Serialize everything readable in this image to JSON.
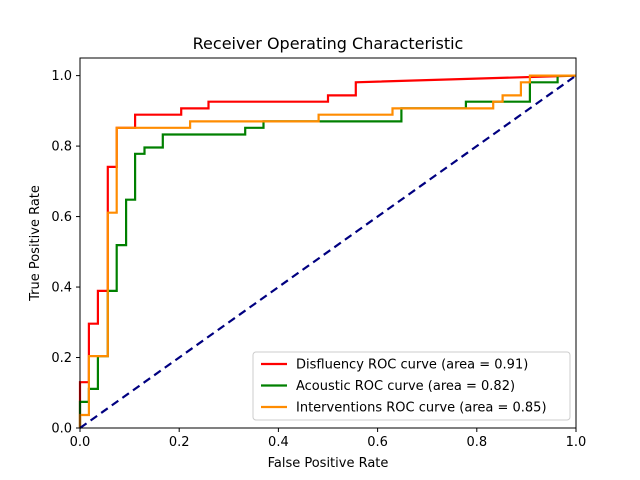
{
  "chart_data": {
    "type": "line",
    "title": "Receiver Operating Characteristic",
    "xlabel": "False Positive Rate",
    "ylabel": "True Positive Rate",
    "xlim": [
      0.0,
      1.0
    ],
    "ylim": [
      0.0,
      1.05
    ],
    "xticks": [
      0.0,
      0.2,
      0.4,
      0.6,
      0.8,
      1.0
    ],
    "yticks": [
      0.0,
      0.2,
      0.4,
      0.6,
      0.8,
      1.0
    ],
    "xtick_labels": [
      "0.0",
      "0.2",
      "0.4",
      "0.6",
      "0.8",
      "1.0"
    ],
    "ytick_labels": [
      "0.0",
      "0.2",
      "0.4",
      "0.6",
      "0.8",
      "1.0"
    ],
    "grid": false,
    "legend_position": "lower-right",
    "series": [
      {
        "name": "Disfluency ROC curve (area = 0.91)",
        "color": "#ff0000",
        "style": "solid",
        "x": [
          0.0,
          0.0,
          0.018,
          0.018,
          0.036,
          0.036,
          0.056,
          0.056,
          0.074,
          0.074,
          0.111,
          0.111,
          0.204,
          0.204,
          0.259,
          0.259,
          0.5,
          0.5,
          0.556,
          0.556,
          1.0
        ],
        "y": [
          0.0,
          0.13,
          0.13,
          0.296,
          0.296,
          0.389,
          0.389,
          0.741,
          0.741,
          0.852,
          0.852,
          0.889,
          0.889,
          0.907,
          0.907,
          0.926,
          0.926,
          0.944,
          0.944,
          0.981,
          1.0
        ]
      },
      {
        "name": "Acoustic ROC curve (area = 0.82)",
        "color": "#008000",
        "style": "solid",
        "x": [
          0.0,
          0.0,
          0.018,
          0.018,
          0.036,
          0.036,
          0.056,
          0.056,
          0.074,
          0.074,
          0.093,
          0.093,
          0.111,
          0.111,
          0.13,
          0.13,
          0.167,
          0.167,
          0.333,
          0.333,
          0.37,
          0.37,
          0.648,
          0.648,
          0.778,
          0.778,
          0.907,
          0.907,
          0.963,
          0.963,
          1.0
        ],
        "y": [
          0.0,
          0.074,
          0.074,
          0.111,
          0.111,
          0.204,
          0.204,
          0.389,
          0.389,
          0.519,
          0.519,
          0.648,
          0.648,
          0.778,
          0.778,
          0.796,
          0.796,
          0.833,
          0.833,
          0.852,
          0.852,
          0.87,
          0.87,
          0.907,
          0.907,
          0.926,
          0.926,
          0.981,
          0.981,
          1.0,
          1.0
        ]
      },
      {
        "name": "Interventions ROC curve (area = 0.85)",
        "color": "#ff8c00",
        "style": "solid",
        "x": [
          0.0,
          0.0,
          0.018,
          0.018,
          0.056,
          0.056,
          0.074,
          0.074,
          0.222,
          0.222,
          0.481,
          0.481,
          0.63,
          0.63,
          0.833,
          0.833,
          0.852,
          0.852,
          0.889,
          0.889,
          0.907,
          0.907,
          1.0
        ],
        "y": [
          0.0,
          0.037,
          0.037,
          0.204,
          0.204,
          0.611,
          0.611,
          0.852,
          0.852,
          0.87,
          0.87,
          0.889,
          0.889,
          0.907,
          0.907,
          0.926,
          0.926,
          0.944,
          0.944,
          0.981,
          0.981,
          1.0,
          1.0
        ]
      },
      {
        "name": "",
        "color": "#000080",
        "style": "dashed",
        "x": [
          0.0,
          1.0
        ],
        "y": [
          0.0,
          1.0
        ]
      }
    ]
  }
}
